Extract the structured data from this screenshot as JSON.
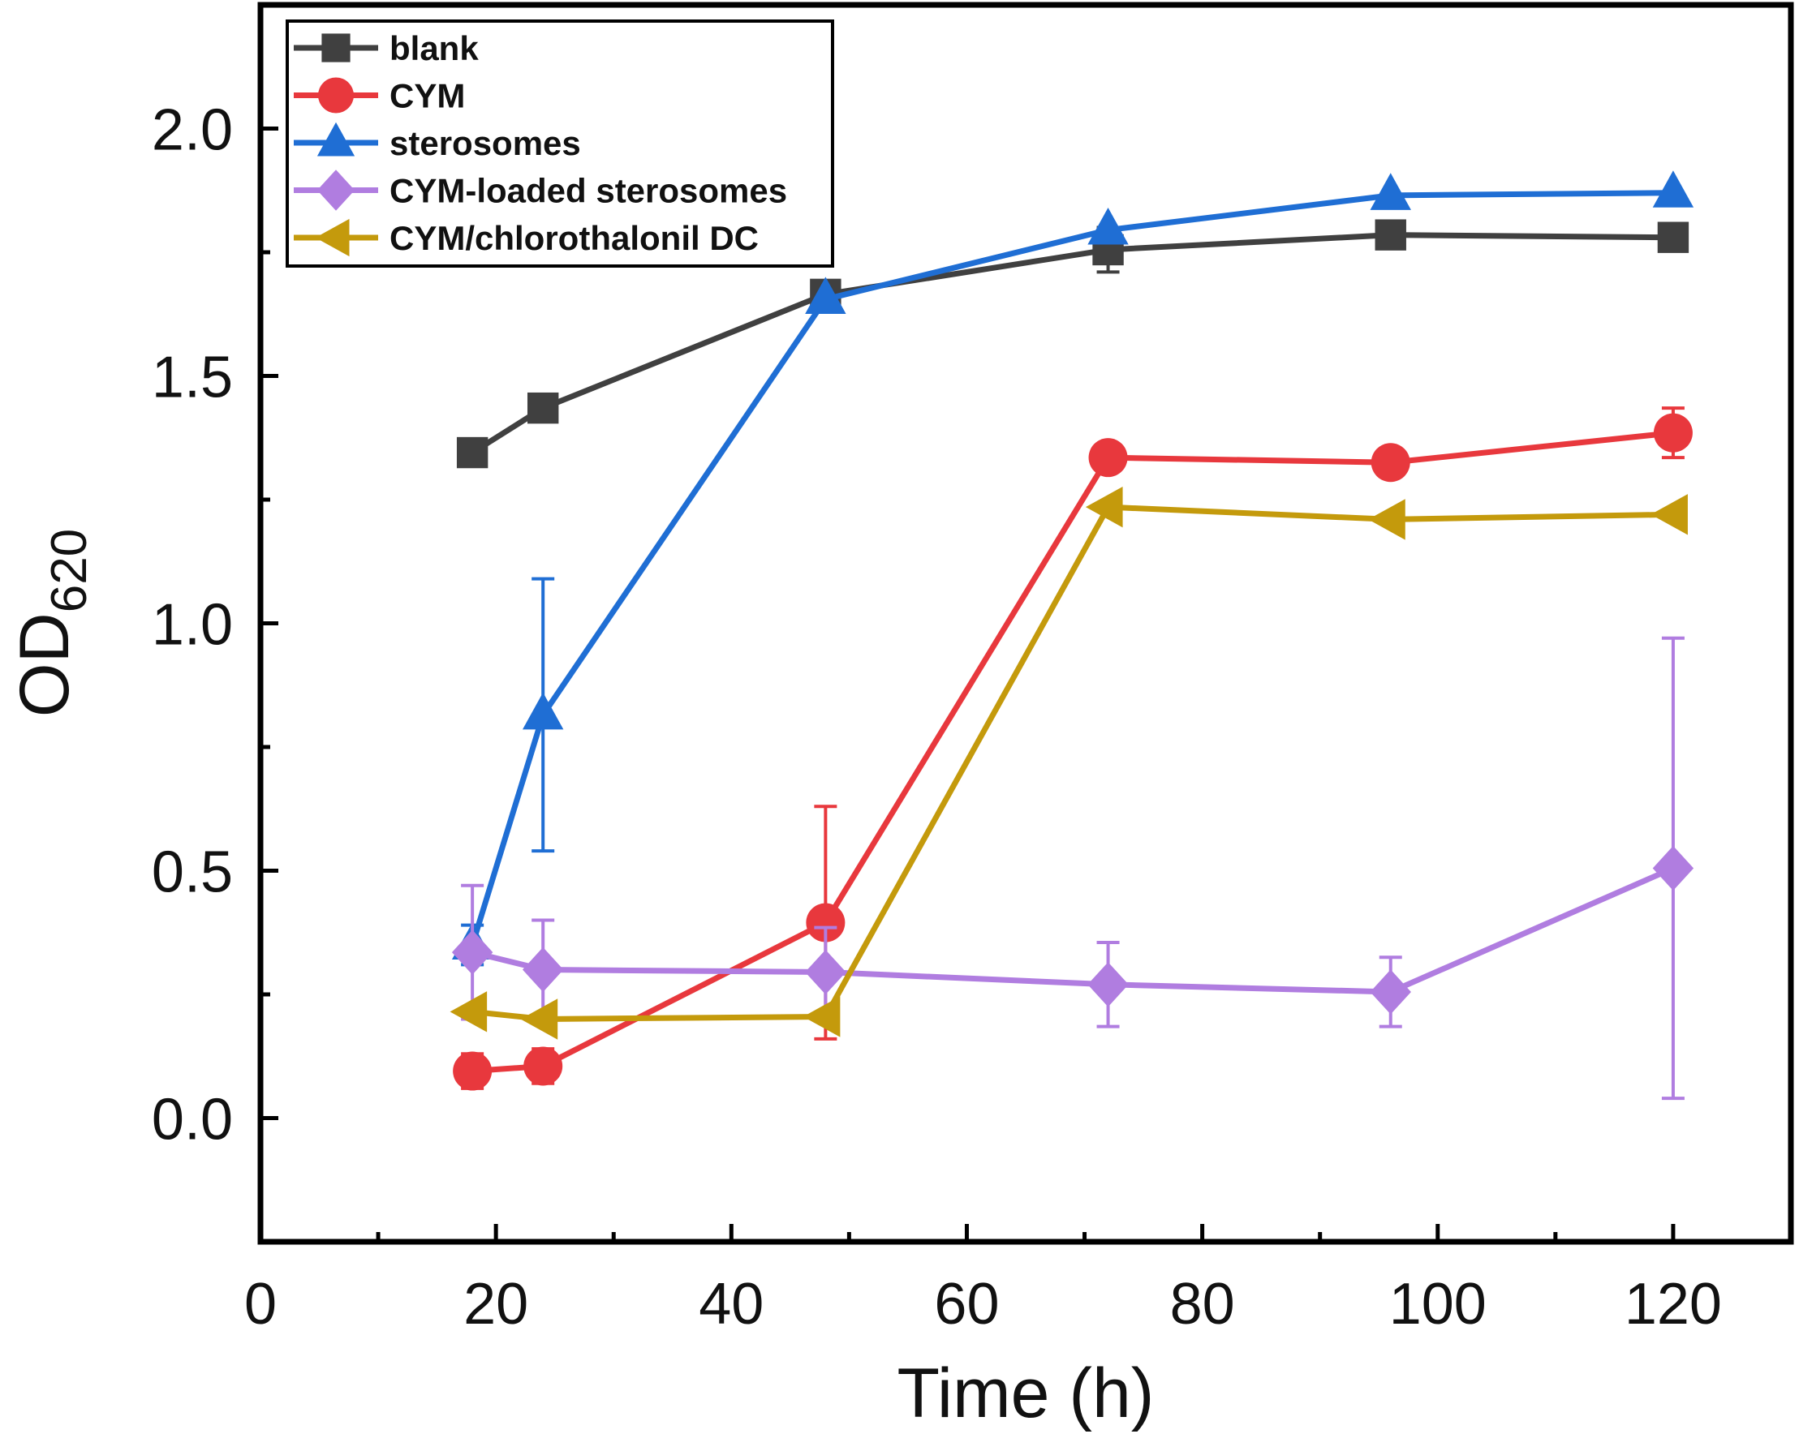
{
  "chart_data": {
    "type": "line",
    "title": "",
    "xlabel": "Time (h)",
    "ylabel": {
      "main": "OD",
      "subscript": "620"
    },
    "xlim": [
      0,
      130
    ],
    "ylim": [
      -0.25,
      2.25
    ],
    "xticks": [
      0,
      20,
      40,
      60,
      80,
      100,
      120
    ],
    "xtick_labels": [
      "0",
      "20",
      "40",
      "60",
      "80",
      "100",
      "120"
    ],
    "xminor": [
      10,
      30,
      50,
      70,
      90,
      110
    ],
    "yticks": [
      0.0,
      0.5,
      1.0,
      1.5,
      2.0
    ],
    "ytick_labels": [
      "0.0",
      "0.5",
      "1.0",
      "1.5",
      "2.0"
    ],
    "yminor": [
      -0.25,
      0.25,
      0.75,
      1.25,
      1.75
    ],
    "grid": false,
    "legend_position": "top-left",
    "x": [
      18,
      24,
      48,
      72,
      96,
      120
    ],
    "series": [
      {
        "name": "blank",
        "color": "#404040",
        "marker": "square",
        "values": [
          1.345,
          1.435,
          1.665,
          1.755,
          1.785,
          1.78
        ],
        "errors": [
          0.01,
          0.01,
          0.01,
          0.045,
          0.01,
          0.01
        ]
      },
      {
        "name": "CYM",
        "color": "#e8383d",
        "marker": "circle",
        "values": [
          0.095,
          0.105,
          0.395,
          1.335,
          1.325,
          1.385
        ],
        "errors": [
          0.035,
          0.035,
          0.235,
          0.01,
          0.01,
          0.05
        ]
      },
      {
        "name": "sterosomes",
        "color": "#1f6ed4",
        "marker": "triangle-up",
        "values": [
          0.35,
          0.815,
          1.655,
          1.795,
          1.865,
          1.87
        ],
        "errors": [
          0.04,
          0.275,
          0.01,
          0.01,
          0.01,
          0.01
        ]
      },
      {
        "name": "CYM-loaded sterosomes",
        "color": "#b07de0",
        "marker": "diamond",
        "values": [
          0.335,
          0.3,
          0.295,
          0.27,
          0.255,
          0.505
        ],
        "errors": [
          0.135,
          0.1,
          0.09,
          0.085,
          0.07,
          0.465
        ]
      },
      {
        "name": "CYM/chlorothalonil DC",
        "color": "#c49a0c",
        "marker": "triangle-left",
        "values": [
          0.215,
          0.2,
          0.205,
          1.235,
          1.21,
          1.22
        ],
        "errors": [
          0.01,
          0.01,
          0.01,
          0.01,
          0.01,
          0.01
        ]
      }
    ]
  }
}
